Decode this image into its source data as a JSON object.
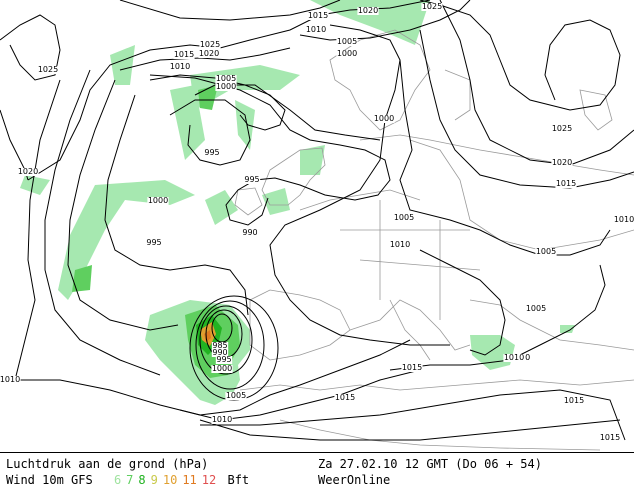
{
  "legend": {
    "line1_left": "Luchtdruk aan de grond (hPa)",
    "line2_left": "Wind 10m GFS",
    "beaufort": [
      {
        "value": "6",
        "color": "#9fe39f"
      },
      {
        "value": "7",
        "color": "#5fcf5f"
      },
      {
        "value": "8",
        "color": "#22b322"
      },
      {
        "value": "9",
        "color": "#c9c94a"
      },
      {
        "value": "10",
        "color": "#e0a030"
      },
      {
        "value": "11",
        "color": "#e07a20"
      },
      {
        "value": "12",
        "color": "#e05050"
      }
    ],
    "beaufort_unit": "Bft",
    "line1_right": "Za 27.02.10 12 GMT (Do 06 + 54)",
    "line2_right": "WeerOnline"
  },
  "isobar_labels": [
    "1015",
    "1020",
    "1025",
    "1025",
    "1020",
    "1015",
    "1010",
    "1005",
    "1000",
    "1010",
    "1005",
    "1000",
    "1025",
    "1020",
    "1000",
    "995",
    "995",
    "1000",
    "995",
    "990",
    "1005",
    "1010",
    "1005",
    "1010",
    "1020",
    "1015",
    "1025",
    "1015",
    "1020",
    "1010",
    "1005",
    "1010",
    "985",
    "990",
    "995",
    "1000",
    "1005",
    "1010",
    "1015",
    "1015",
    "1015"
  ]
}
